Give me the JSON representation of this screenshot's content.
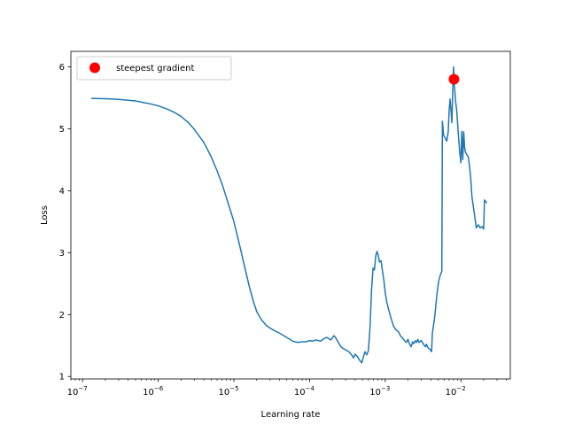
{
  "chart_data": {
    "type": "line",
    "xlabel": "Learning rate",
    "ylabel": "Loss",
    "xscale": "log",
    "xlim": [
      7e-08,
      0.045
    ],
    "ylim": [
      0.96,
      6.25
    ],
    "x_ticks": [
      {
        "value": 1e-07,
        "label": "10",
        "exp": "−7"
      },
      {
        "value": 1e-06,
        "label": "10",
        "exp": "−6"
      },
      {
        "value": 1e-05,
        "label": "10",
        "exp": "−5"
      },
      {
        "value": 0.0001,
        "label": "10",
        "exp": "−4"
      },
      {
        "value": 0.001,
        "label": "10",
        "exp": "−3"
      },
      {
        "value": 0.01,
        "label": "10",
        "exp": "−2"
      }
    ],
    "y_ticks": [
      1,
      2,
      3,
      4,
      5,
      6
    ],
    "grid": false,
    "legend": {
      "placement": "top-left",
      "entries": [
        "steepest gradient"
      ]
    },
    "series": [
      {
        "color": "#1f77b4",
        "points": [
          [
            1.3e-07,
            5.49
          ],
          [
            2e-07,
            5.485
          ],
          [
            3e-07,
            5.475
          ],
          [
            4e-07,
            5.46
          ],
          [
            5e-07,
            5.45
          ],
          [
            6e-07,
            5.43
          ],
          [
            8e-07,
            5.4
          ],
          [
            1e-06,
            5.37
          ],
          [
            1.3e-06,
            5.32
          ],
          [
            1.6e-06,
            5.27
          ],
          [
            2e-06,
            5.2
          ],
          [
            2.5e-06,
            5.1
          ],
          [
            3e-06,
            4.99
          ],
          [
            4e-06,
            4.78
          ],
          [
            5e-06,
            4.55
          ],
          [
            6e-06,
            4.32
          ],
          [
            7e-06,
            4.1
          ],
          [
            8e-06,
            3.88
          ],
          [
            9e-06,
            3.68
          ],
          [
            1e-05,
            3.5
          ],
          [
            1.2e-05,
            3.1
          ],
          [
            1.4e-05,
            2.75
          ],
          [
            1.6e-05,
            2.45
          ],
          [
            1.8e-05,
            2.22
          ],
          [
            2e-05,
            2.05
          ],
          [
            2.3e-05,
            1.92
          ],
          [
            2.7e-05,
            1.82
          ],
          [
            3.2e-05,
            1.76
          ],
          [
            4e-05,
            1.7
          ],
          [
            5e-05,
            1.63
          ],
          [
            6e-05,
            1.57
          ],
          [
            7e-05,
            1.55
          ],
          [
            8e-05,
            1.56
          ],
          [
            9e-05,
            1.56
          ],
          [
            0.0001,
            1.58
          ],
          [
            0.00011,
            1.57
          ],
          [
            0.00012,
            1.59
          ],
          [
            0.00013,
            1.58
          ],
          [
            0.00014,
            1.57
          ],
          [
            0.00015,
            1.6
          ],
          [
            0.00016,
            1.62
          ],
          [
            0.00017,
            1.63
          ],
          [
            0.00018,
            1.61
          ],
          [
            0.00019,
            1.59
          ],
          [
            0.0002,
            1.62
          ],
          [
            0.00021,
            1.66
          ],
          [
            0.00022,
            1.63
          ],
          [
            0.00024,
            1.55
          ],
          [
            0.00026,
            1.48
          ],
          [
            0.00028,
            1.45
          ],
          [
            0.0003,
            1.43
          ],
          [
            0.00033,
            1.4
          ],
          [
            0.00036,
            1.35
          ],
          [
            0.00038,
            1.3
          ],
          [
            0.0004,
            1.36
          ],
          [
            0.00043,
            1.32
          ],
          [
            0.00046,
            1.26
          ],
          [
            0.00049,
            1.22
          ],
          [
            0.00051,
            1.3
          ],
          [
            0.00054,
            1.4
          ],
          [
            0.00057,
            1.35
          ],
          [
            0.0006,
            1.42
          ],
          [
            0.00063,
            1.8
          ],
          [
            0.00066,
            2.4
          ],
          [
            0.00069,
            2.75
          ],
          [
            0.00072,
            2.72
          ],
          [
            0.00075,
            2.95
          ],
          [
            0.00078,
            3.02
          ],
          [
            0.00081,
            2.95
          ],
          [
            0.00084,
            2.85
          ],
          [
            0.00088,
            2.87
          ],
          [
            0.00092,
            2.7
          ],
          [
            0.00096,
            2.55
          ],
          [
            0.001,
            2.35
          ],
          [
            0.00105,
            2.2
          ],
          [
            0.0011,
            2.1
          ],
          [
            0.0012,
            1.93
          ],
          [
            0.0013,
            1.8
          ],
          [
            0.0014,
            1.75
          ],
          [
            0.0015,
            1.72
          ],
          [
            0.0016,
            1.65
          ],
          [
            0.0017,
            1.62
          ],
          [
            0.0018,
            1.58
          ],
          [
            0.0019,
            1.55
          ],
          [
            0.002,
            1.6
          ],
          [
            0.0021,
            1.52
          ],
          [
            0.0022,
            1.48
          ],
          [
            0.0023,
            1.56
          ],
          [
            0.0024,
            1.53
          ],
          [
            0.0025,
            1.58
          ],
          [
            0.0026,
            1.55
          ],
          [
            0.0027,
            1.6
          ],
          [
            0.0028,
            1.55
          ],
          [
            0.003,
            1.58
          ],
          [
            0.0032,
            1.52
          ],
          [
            0.0034,
            1.48
          ],
          [
            0.0035,
            1.52
          ],
          [
            0.0037,
            1.46
          ],
          [
            0.0039,
            1.44
          ],
          [
            0.0041,
            1.4
          ],
          [
            0.0042,
            1.7
          ],
          [
            0.0045,
            1.95
          ],
          [
            0.0048,
            2.3
          ],
          [
            0.0051,
            2.55
          ],
          [
            0.0054,
            2.65
          ],
          [
            0.0056,
            2.7
          ],
          [
            0.0057,
            5.12
          ],
          [
            0.0059,
            4.9
          ],
          [
            0.0062,
            4.85
          ],
          [
            0.0065,
            4.8
          ],
          [
            0.0068,
            4.95
          ],
          [
            0.007,
            5.3
          ],
          [
            0.0072,
            5.48
          ],
          [
            0.0074,
            5.3
          ],
          [
            0.0076,
            5.1
          ],
          [
            0.0078,
            5.6
          ],
          [
            0.008,
            6.0
          ],
          [
            0.0082,
            5.7
          ],
          [
            0.0085,
            5.45
          ],
          [
            0.0088,
            5.3
          ],
          [
            0.0091,
            5.05
          ],
          [
            0.0094,
            4.8
          ],
          [
            0.0097,
            4.6
          ],
          [
            0.01,
            4.45
          ],
          [
            0.0103,
            4.96
          ],
          [
            0.0106,
            4.5
          ],
          [
            0.0109,
            4.95
          ],
          [
            0.0112,
            4.7
          ],
          [
            0.0115,
            4.62
          ],
          [
            0.012,
            4.58
          ],
          [
            0.0125,
            4.55
          ],
          [
            0.013,
            4.4
          ],
          [
            0.0135,
            4.2
          ],
          [
            0.014,
            3.9
          ],
          [
            0.015,
            3.65
          ],
          [
            0.016,
            3.4
          ],
          [
            0.017,
            3.45
          ],
          [
            0.018,
            3.4
          ],
          [
            0.019,
            3.42
          ],
          [
            0.02,
            3.38
          ],
          [
            0.0205,
            3.85
          ],
          [
            0.022,
            3.8
          ]
        ]
      }
    ],
    "highlight_point": {
      "label": "steepest gradient",
      "x": 0.0081,
      "y": 5.8,
      "color": "#ff0000"
    }
  }
}
